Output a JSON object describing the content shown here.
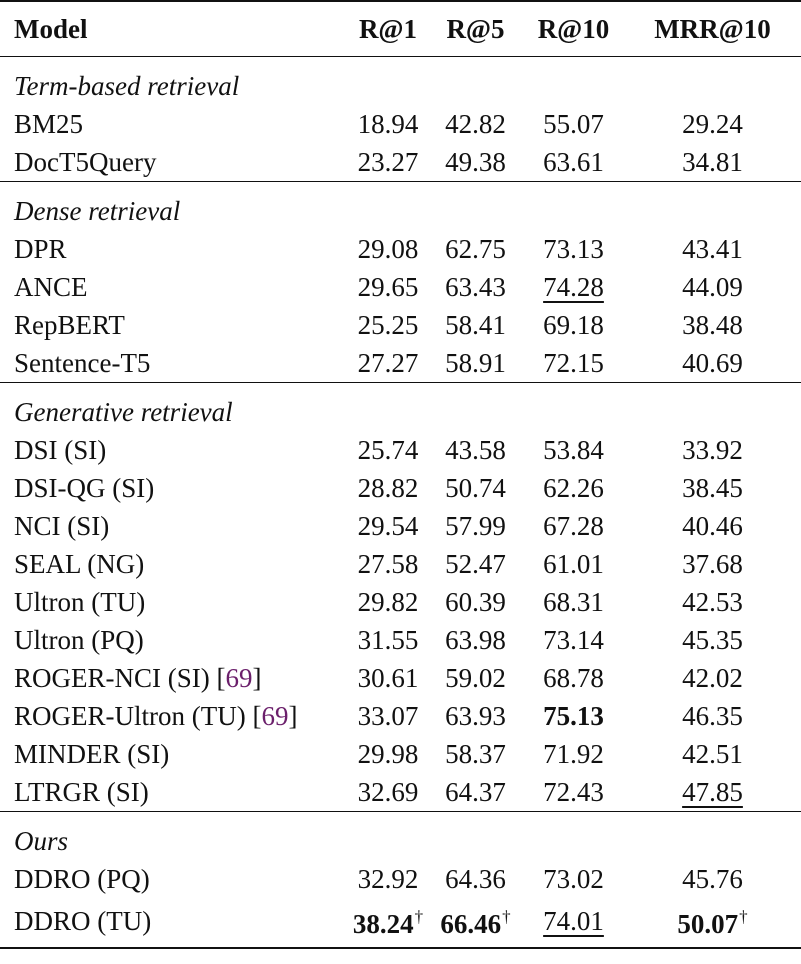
{
  "headers": {
    "model": "Model",
    "r1": "R@1",
    "r5": "R@5",
    "r10": "R@10",
    "mrr": "MRR@10"
  },
  "sections": [
    {
      "title": "Term-based retrieval",
      "rows": [
        {
          "model": "BM25",
          "r1": "18.94",
          "r5": "42.82",
          "r10": "55.07",
          "mrr": "29.24"
        },
        {
          "model": "DocT5Query",
          "r1": "23.27",
          "r5": "49.38",
          "r10": "63.61",
          "mrr": "34.81"
        }
      ]
    },
    {
      "title": "Dense retrieval",
      "rows": [
        {
          "model": "DPR",
          "r1": "29.08",
          "r5": "62.75",
          "r10": "73.13",
          "mrr": "43.41"
        },
        {
          "model": "ANCE",
          "r1": "29.65",
          "r5": "63.43",
          "r10": "74.28",
          "mrr": "44.09"
        },
        {
          "model": "RepBERT",
          "r1": "25.25",
          "r5": "58.41",
          "r10": "69.18",
          "mrr": "38.48"
        },
        {
          "model": "Sentence-T5",
          "r1": "27.27",
          "r5": "58.91",
          "r10": "72.15",
          "mrr": "40.69"
        }
      ]
    },
    {
      "title": "Generative retrieval",
      "rows": [
        {
          "model": "DSI (SI)",
          "r1": "25.74",
          "r5": "43.58",
          "r10": "53.84",
          "mrr": "33.92"
        },
        {
          "model": "DSI-QG (SI)",
          "r1": "28.82",
          "r5": "50.74",
          "r10": "62.26",
          "mrr": "38.45"
        },
        {
          "model": "NCI (SI)",
          "r1": "29.54",
          "r5": "57.99",
          "r10": "67.28",
          "mrr": "40.46"
        },
        {
          "model": "SEAL (NG)",
          "r1": "27.58",
          "r5": "52.47",
          "r10": "61.01",
          "mrr": "37.68"
        },
        {
          "model": "Ultron (TU)",
          "r1": "29.82",
          "r5": "60.39",
          "r10": "68.31",
          "mrr": "42.53"
        },
        {
          "model": "Ultron (PQ)",
          "r1": "31.55",
          "r5": "63.98",
          "r10": "73.14",
          "mrr": "45.35"
        },
        {
          "model": "ROGER-NCI (SI)",
          "cite": "69",
          "r1": "30.61",
          "r5": "59.02",
          "r10": "68.78",
          "mrr": "42.02"
        },
        {
          "model": "ROGER-Ultron (TU)",
          "cite": "69",
          "r1": "33.07",
          "r5": "63.93",
          "r10": "75.13",
          "mrr": "46.35"
        },
        {
          "model": "MINDER (SI)",
          "r1": "29.98",
          "r5": "58.37",
          "r10": "71.92",
          "mrr": "42.51"
        },
        {
          "model": "LTRGR (SI)",
          "r1": "32.69",
          "r5": "64.37",
          "r10": "72.43",
          "mrr": "47.85"
        }
      ]
    },
    {
      "title": "Ours",
      "rows": [
        {
          "model": "DDRO (PQ)",
          "r1": "32.92",
          "r5": "64.36",
          "r10": "73.02",
          "mrr": "45.76"
        },
        {
          "model": "DDRO (TU)",
          "r1": "38.24",
          "r5": "66.46",
          "r10": "74.01",
          "mrr": "50.07"
        }
      ]
    }
  ],
  "marks": {
    "dagger": "†",
    "cite_open": "[",
    "cite_close": "]"
  }
}
